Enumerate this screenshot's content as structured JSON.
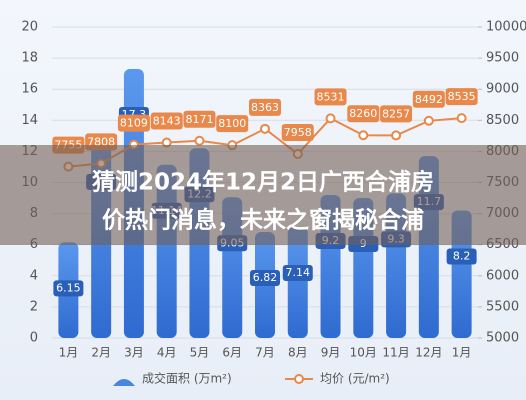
{
  "chart_data": {
    "type": "bar_line",
    "categories": [
      "1月",
      "2月",
      "3月",
      "4月",
      "5月",
      "6月",
      "7月",
      "8月",
      "9月",
      "10月",
      "11月",
      "12月",
      "1月"
    ],
    "series": [
      {
        "name": "成交面积 (万m²)",
        "type": "bar",
        "color": "#4a86e0",
        "values": [
          6.15,
          13.0,
          17.3,
          11.14,
          12.2,
          9.05,
          6.82,
          7.14,
          9.2,
          9.0,
          9.3,
          11.7,
          8.2
        ]
      },
      {
        "name": "均价 (元/m²)",
        "type": "line",
        "axis": "y2",
        "color": "#e8884a",
        "values": [
          7755,
          7808,
          8109,
          8143,
          8171,
          8100,
          8363,
          7958,
          8531,
          8260,
          8257,
          8492,
          8535
        ]
      }
    ],
    "ylim": [
      0,
      20
    ],
    "yticks": [
      0,
      2,
      4,
      6,
      8,
      10,
      12,
      14,
      16,
      18,
      20
    ],
    "y2lim": [
      5000,
      10000
    ],
    "y2ticks": [
      5000,
      5500,
      6000,
      6500,
      7000,
      7500,
      8000,
      8500,
      9000,
      9500,
      10000
    ],
    "grid": true,
    "banner": [
      "猜测2024年12月2日广西合浦房",
      "价热门消息，未来之窗揭秘合浦"
    ]
  }
}
